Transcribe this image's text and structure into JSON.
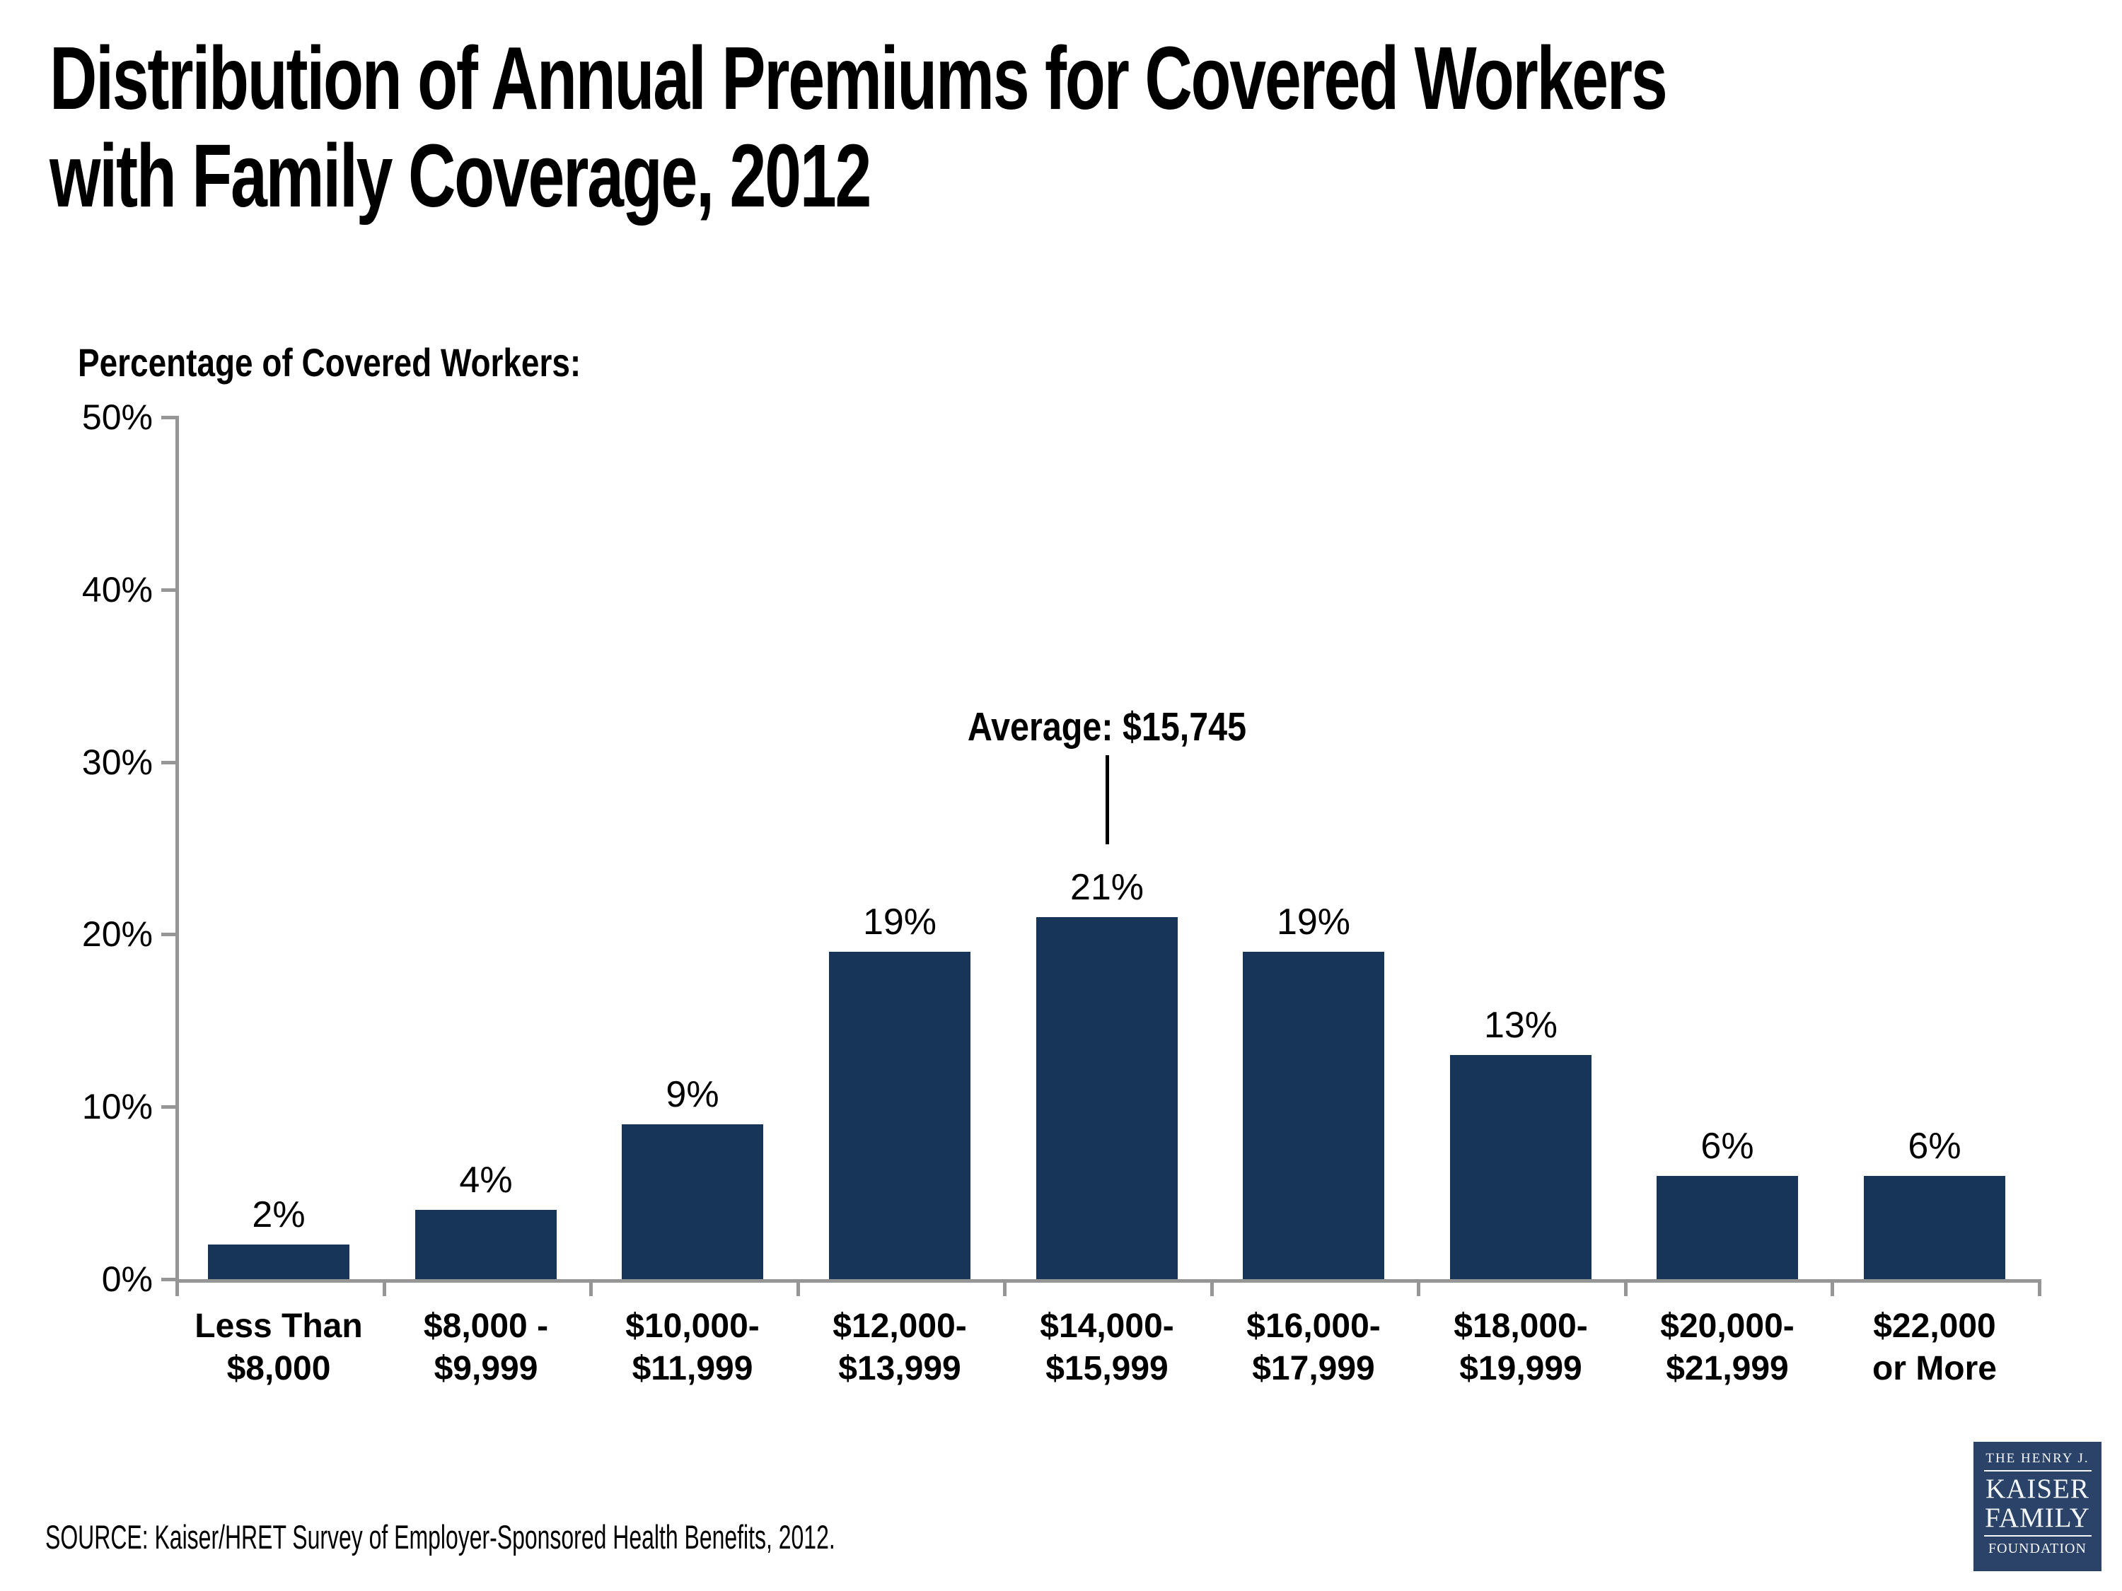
{
  "title": {
    "line1": "Distribution of Annual Premiums for Covered Workers",
    "line2": "with Family Coverage, 2012"
  },
  "axis_label": "Percentage of Covered Workers:",
  "annotation": {
    "label": "Average: $15,745"
  },
  "source": {
    "text": "SOURCE:  Kaiser/HRET Survey of Employer-Sponsored Health Benefits, 2012."
  },
  "logo": {
    "top": "THE HENRY J.",
    "name1": "KAISER",
    "name2": "FAMILY",
    "bottom": "FOUNDATION"
  },
  "colors": {
    "bar": "#173459",
    "axis": "#969696",
    "annotation_line": "#000000",
    "logo_bg": "#2B4368",
    "logo_text": "#F4F7FA"
  },
  "chart_data": {
    "type": "bar",
    "title": "Distribution of Annual Premiums for Covered Workers with Family Coverage, 2012",
    "categories": [
      "Less Than\n$8,000",
      "$8,000 -\n$9,999",
      "$10,000-\n$11,999",
      "$12,000-\n$13,999",
      "$14,000-\n$15,999",
      "$16,000-\n$17,999",
      "$18,000-\n$19,999",
      "$20,000-\n$21,999",
      "$22,000\nor More"
    ],
    "values": [
      2,
      4,
      9,
      19,
      21,
      19,
      13,
      6,
      6
    ],
    "value_labels": [
      "2%",
      "4%",
      "9%",
      "19%",
      "21%",
      "19%",
      "13%",
      "6%",
      "6%"
    ],
    "xlabel": "",
    "ylabel": "Percentage of Covered Workers:",
    "ylim": [
      0,
      50
    ],
    "y_tick_labels": [
      "0%",
      "10%",
      "20%",
      "30%",
      "40%",
      "50%"
    ],
    "grid": false,
    "legend": false,
    "bar_color": "#173459",
    "annotation": {
      "text": "Average: $15,745",
      "category_index": 4
    }
  }
}
